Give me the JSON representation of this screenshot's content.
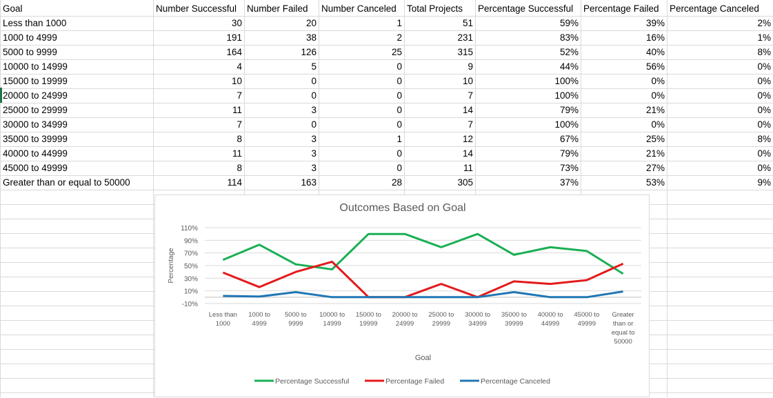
{
  "table": {
    "headers": [
      "Goal",
      "Number Successful",
      "Number Failed",
      "Number Canceled",
      "Total Projects",
      "Percentage Successful",
      "Percentage Failed",
      "Percentage Canceled"
    ],
    "rows": [
      [
        "Less than 1000",
        "30",
        "20",
        "1",
        "51",
        "59%",
        "39%",
        "2%"
      ],
      [
        "1000 to 4999",
        "191",
        "38",
        "2",
        "231",
        "83%",
        "16%",
        "1%"
      ],
      [
        "5000 to 9999",
        "164",
        "126",
        "25",
        "315",
        "52%",
        "40%",
        "8%"
      ],
      [
        "10000 to 14999",
        "4",
        "5",
        "0",
        "9",
        "44%",
        "56%",
        "0%"
      ],
      [
        "15000 to 19999",
        "10",
        "0",
        "0",
        "10",
        "100%",
        "0%",
        "0%"
      ],
      [
        "20000 to 24999",
        "7",
        "0",
        "0",
        "7",
        "100%",
        "0%",
        "0%"
      ],
      [
        "25000 to 29999",
        "11",
        "3",
        "0",
        "14",
        "79%",
        "21%",
        "0%"
      ],
      [
        "30000 to 34999",
        "7",
        "0",
        "0",
        "7",
        "100%",
        "0%",
        "0%"
      ],
      [
        "35000 to 39999",
        "8",
        "3",
        "1",
        "12",
        "67%",
        "25%",
        "8%"
      ],
      [
        "40000 to 44999",
        "11",
        "3",
        "0",
        "14",
        "79%",
        "21%",
        "0%"
      ],
      [
        "45000 to 49999",
        "8",
        "3",
        "0",
        "11",
        "73%",
        "27%",
        "0%"
      ],
      [
        "Greater than or equal to 50000",
        "114",
        "163",
        "28",
        "305",
        "37%",
        "53%",
        "9%"
      ]
    ]
  },
  "chart_data": {
    "type": "line",
    "title": "Outcomes Based on Goal",
    "xlabel": "Goal",
    "ylabel": "Percentage",
    "categories": [
      [
        "Less than",
        "1000"
      ],
      [
        "1000 to",
        "4999"
      ],
      [
        "5000 to",
        "9999"
      ],
      [
        "10000 to",
        "14999"
      ],
      [
        "15000 to",
        "19999"
      ],
      [
        "20000 to",
        "24999"
      ],
      [
        "25000 to",
        "29999"
      ],
      [
        "30000 to",
        "34999"
      ],
      [
        "35000 to",
        "39999"
      ],
      [
        "40000 to",
        "44999"
      ],
      [
        "45000 to",
        "49999"
      ],
      [
        "Greater",
        "than or",
        "equal to",
        "50000"
      ]
    ],
    "yticks": [
      "110%",
      "90%",
      "70%",
      "50%",
      "30%",
      "10%",
      "-10%"
    ],
    "ylim": [
      -10,
      110
    ],
    "grid": true,
    "legend": "bottom",
    "series": [
      {
        "name": "Percentage Successful",
        "color": "#1aaf54",
        "values": [
          59,
          83,
          52,
          44,
          100,
          100,
          79,
          100,
          67,
          79,
          73,
          37
        ]
      },
      {
        "name": "Percentage Failed",
        "color": "#e31a1c",
        "values": [
          39,
          16,
          40,
          56,
          0,
          0,
          21,
          0,
          25,
          21,
          27,
          53
        ]
      },
      {
        "name": "Percentage Canceled",
        "color": "#1f77b4",
        "values": [
          2,
          1,
          8,
          0,
          0,
          0,
          0,
          0,
          8,
          0,
          0,
          9
        ]
      }
    ]
  }
}
